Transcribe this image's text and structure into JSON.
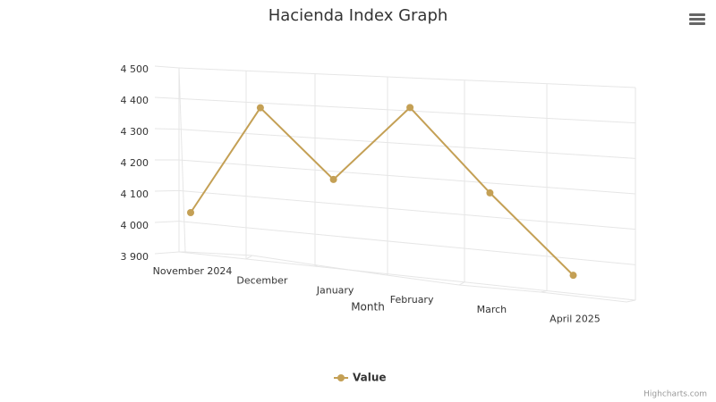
{
  "chart_data": {
    "type": "line",
    "title": "Hacienda Index Graph",
    "x_label": "Month",
    "categories": [
      "November 2024",
      "December",
      "January",
      "February",
      "March",
      "April 2025"
    ],
    "series": [
      {
        "name": "Value",
        "color": "#c4a055",
        "values": [
          4050,
          4380,
          4155,
          4370,
          4115,
          3880
        ]
      }
    ],
    "ylim": [
      3900,
      4500
    ],
    "yticks": [
      {
        "value": 3900,
        "label": "3 900"
      },
      {
        "value": 4000,
        "label": "4 000"
      },
      {
        "value": 4100,
        "label": "4 100"
      },
      {
        "value": 4200,
        "label": "4 200"
      },
      {
        "value": 4300,
        "label": "4 300"
      },
      {
        "value": 4400,
        "label": "4 400"
      },
      {
        "value": 4500,
        "label": "4 500"
      }
    ],
    "grid": true,
    "legend": "bottom",
    "credits": "Highcharts.com"
  }
}
